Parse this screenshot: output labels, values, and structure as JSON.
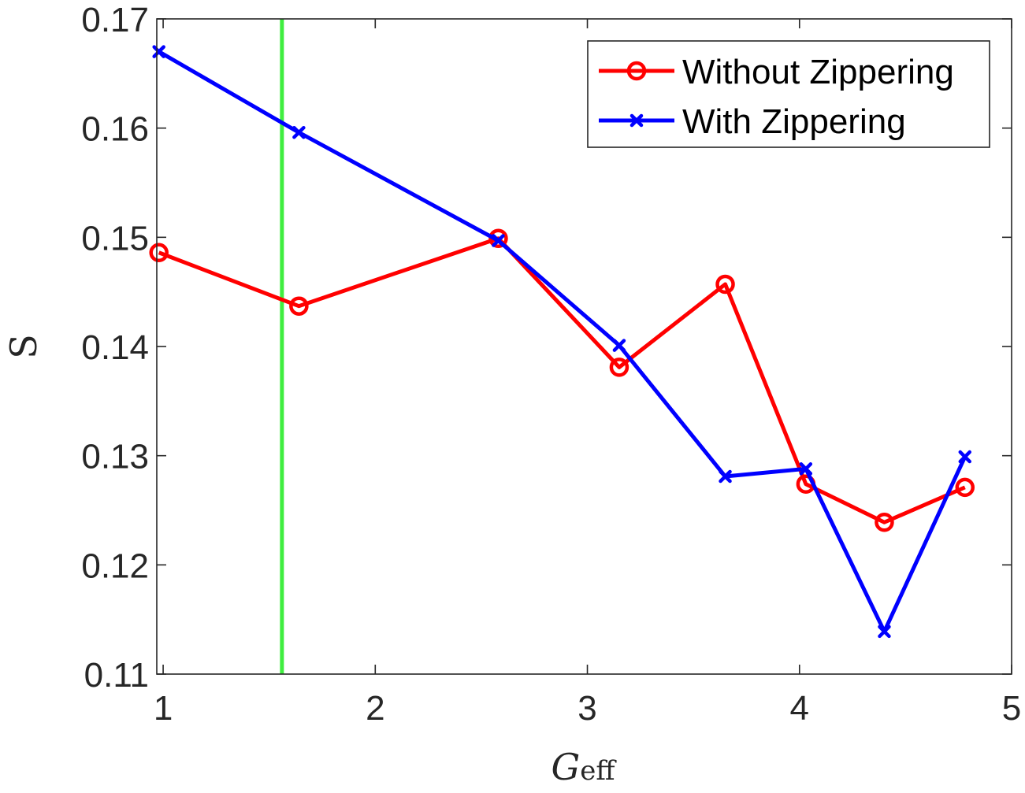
{
  "chart_data": {
    "type": "line",
    "xlabel": {
      "main": "G",
      "sub": "eff"
    },
    "ylabel": "S",
    "xlim": [
      0.97,
      5
    ],
    "ylim": [
      0.11,
      0.17
    ],
    "xticks": [
      "1",
      "2",
      "3",
      "4",
      "5"
    ],
    "yticks": [
      "0.11",
      "0.12",
      "0.13",
      "0.14",
      "0.15",
      "0.16",
      "0.17"
    ],
    "grid": false,
    "legend_position": "top-right",
    "reference_line": {
      "orientation": "vertical",
      "x": 1.56,
      "color": "#40ee40"
    },
    "series": [
      {
        "name": "Without Zippering",
        "color": "#ff0000",
        "marker": "circle",
        "x": [
          0.98,
          1.64,
          2.58,
          3.15,
          3.65,
          4.03,
          4.4,
          4.78
        ],
        "y": [
          0.1486,
          0.1437,
          0.1499,
          0.1381,
          0.1457,
          0.1274,
          0.1239,
          0.1271
        ]
      },
      {
        "name": "With Zippering",
        "color": "#0000ff",
        "marker": "x",
        "x": [
          0.98,
          1.64,
          2.58,
          3.15,
          3.65,
          4.03,
          4.4,
          4.78
        ],
        "y": [
          0.167,
          0.1596,
          0.1497,
          0.1401,
          0.1281,
          0.1288,
          0.1139,
          0.1299
        ]
      }
    ]
  }
}
